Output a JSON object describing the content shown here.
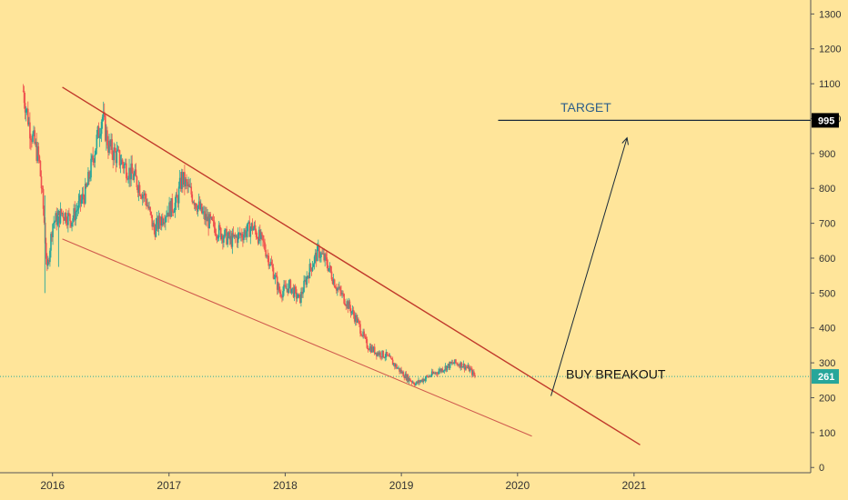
{
  "chart_data": {
    "type": "candlestick",
    "background": "#ffe59a",
    "y_axis": {
      "min": -15,
      "max": 1340,
      "ticks": [
        0,
        100,
        200,
        300,
        400,
        500,
        600,
        700,
        800,
        900,
        1000,
        1100,
        1200,
        1300
      ],
      "tick_labels": [
        "0",
        "100",
        "200",
        "300",
        "400",
        "500",
        "600",
        "700",
        "800",
        "900",
        "1000",
        "1100",
        "1200",
        "1300"
      ],
      "position": "right"
    },
    "x_axis": {
      "type": "time",
      "min": "2015-07-20",
      "max": "2022-07-10",
      "ticks": [
        "2016-01-01",
        "2017-01-01",
        "2018-01-01",
        "2019-01-01",
        "2020-01-01",
        "2021-01-01"
      ],
      "tick_labels": [
        "2016",
        "2017",
        "2018",
        "2019",
        "2020",
        "2021"
      ]
    },
    "colors": {
      "up": "#26a69a",
      "down": "#ef5350",
      "trendline": "#c0392b",
      "target_line": "#1a2a3a",
      "arrow": "#1a2a3a",
      "price_line": "#26a69a"
    },
    "price_path": [
      [
        "2015-10-01",
        1080
      ],
      [
        "2015-10-20",
        980
      ],
      [
        "2015-11-20",
        880
      ],
      [
        "2015-12-05",
        720
      ],
      [
        "2015-12-15",
        560
      ],
      [
        "2016-01-01",
        700
      ],
      [
        "2016-02-01",
        730
      ],
      [
        "2016-03-01",
        710
      ],
      [
        "2016-04-15",
        790
      ],
      [
        "2016-05-10",
        900
      ],
      [
        "2016-06-05",
        1010
      ],
      [
        "2016-06-25",
        920
      ],
      [
        "2016-08-01",
        880
      ],
      [
        "2016-09-15",
        830
      ],
      [
        "2016-10-20",
        770
      ],
      [
        "2016-11-15",
        680
      ],
      [
        "2016-12-20",
        730
      ],
      [
        "2017-01-25",
        760
      ],
      [
        "2017-02-10",
        830
      ],
      [
        "2017-03-15",
        780
      ],
      [
        "2017-04-20",
        720
      ],
      [
        "2017-06-01",
        680
      ],
      [
        "2017-07-15",
        650
      ],
      [
        "2017-08-20",
        670
      ],
      [
        "2017-09-20",
        690
      ],
      [
        "2017-10-25",
        640
      ],
      [
        "2017-11-25",
        560
      ],
      [
        "2017-12-15",
        500
      ],
      [
        "2018-01-15",
        520
      ],
      [
        "2018-02-15",
        480
      ],
      [
        "2018-03-15",
        560
      ],
      [
        "2018-04-15",
        620
      ],
      [
        "2018-05-10",
        590
      ],
      [
        "2018-06-10",
        520
      ],
      [
        "2018-07-15",
        470
      ],
      [
        "2018-08-15",
        420
      ],
      [
        "2018-09-15",
        350
      ],
      [
        "2018-10-15",
        330
      ],
      [
        "2018-11-15",
        320
      ],
      [
        "2018-12-15",
        290
      ],
      [
        "2019-01-15",
        260
      ],
      [
        "2019-02-15",
        240
      ],
      [
        "2019-03-15",
        255
      ],
      [
        "2019-04-15",
        270
      ],
      [
        "2019-05-15",
        285
      ],
      [
        "2019-06-15",
        300
      ],
      [
        "2019-07-10",
        295
      ],
      [
        "2019-08-05",
        280
      ],
      [
        "2019-08-20",
        261
      ]
    ],
    "last_price": 261,
    "last_price_label": "261",
    "target_price": 995,
    "target_price_label": "995",
    "upper_trendline": {
      "from": [
        "2016-02-01",
        1090
      ],
      "to": [
        "2021-01-20",
        65
      ]
    },
    "lower_trendline": {
      "from": [
        "2016-02-01",
        655
      ],
      "to": [
        "2020-02-15",
        90
      ]
    },
    "target_line": {
      "from": "2019-11-01",
      "to": "2022-07-10"
    },
    "projection_arrow": {
      "from": [
        "2020-04-15",
        205
      ],
      "to": [
        "2020-12-10",
        945
      ]
    },
    "annotations": [
      {
        "text": "TARGET",
        "at": [
          "2020-05-15",
          1020
        ],
        "color": "#2e5f8a"
      },
      {
        "text": "BUY BREAKOUT",
        "at": [
          "2020-06-01",
          255
        ],
        "color": "#111111"
      }
    ]
  }
}
